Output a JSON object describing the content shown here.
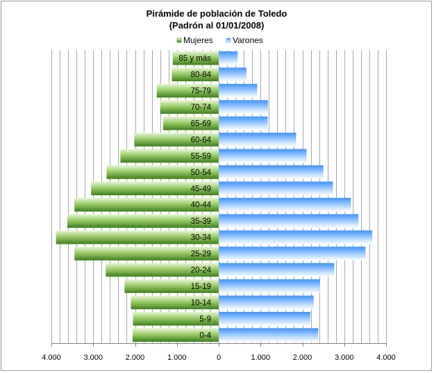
{
  "chart_data": {
    "type": "bar",
    "orientation": "horizontal",
    "title": "Pirámide de población de Toledo",
    "subtitle": "(Padrón al 01/01/2008)",
    "categories": [
      "85 y más",
      "80-84",
      "75-79",
      "70-74",
      "65-69",
      "60-64",
      "55-59",
      "50-54",
      "45-49",
      "40-44",
      "35-39",
      "30-34",
      "25-29",
      "20-24",
      "15-19",
      "10-14",
      "5-9",
      "0-4"
    ],
    "series": [
      {
        "name": "Mujeres",
        "color": "#5a9a2a",
        "values": [
          1100,
          1120,
          1480,
          1400,
          1330,
          2020,
          2350,
          2680,
          3050,
          3450,
          3620,
          3890,
          3450,
          2700,
          2250,
          2100,
          2050,
          2060
        ]
      },
      {
        "name": "Varones",
        "color": "#5aa8ff",
        "values": [
          450,
          660,
          920,
          1180,
          1170,
          1850,
          2100,
          2500,
          2730,
          3160,
          3340,
          3670,
          3510,
          2760,
          2420,
          2270,
          2190,
          2380
        ]
      }
    ],
    "xlim": [
      -4000,
      4000
    ],
    "xticks": [
      -4000,
      -3000,
      -2000,
      -1000,
      0,
      1000,
      2000,
      3000,
      4000
    ],
    "xtick_labels": [
      "4.000",
      "3.000",
      "2.000",
      "1.000",
      "0",
      "1.000",
      "2.000",
      "3.000",
      "4.000"
    ],
    "grid": true,
    "legend_position": "top"
  }
}
